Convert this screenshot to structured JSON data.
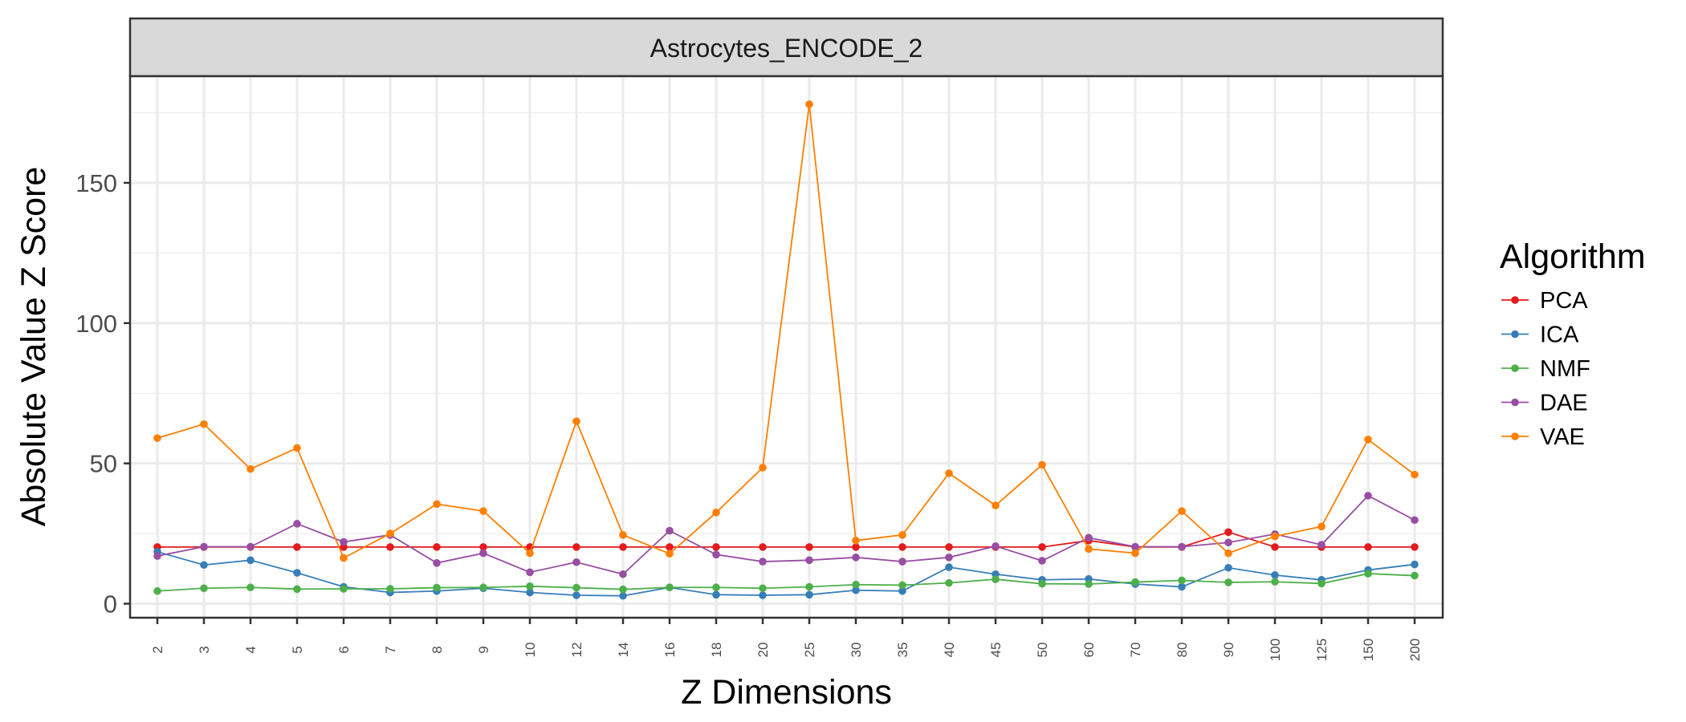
{
  "chart_data": {
    "type": "line",
    "title": "",
    "facet_label": "Astrocytes_ENCODE_2",
    "xlabel": "Z Dimensions",
    "ylabel": "Absolute Value Z Score",
    "categories": [
      "2",
      "3",
      "4",
      "5",
      "6",
      "7",
      "8",
      "9",
      "10",
      "12",
      "14",
      "16",
      "18",
      "20",
      "25",
      "30",
      "35",
      "40",
      "45",
      "50",
      "60",
      "70",
      "80",
      "90",
      "100",
      "125",
      "150",
      "200"
    ],
    "ylim": [
      -5,
      188
    ],
    "yticks": [
      0,
      50,
      100,
      150
    ],
    "grid": true,
    "legend": {
      "title": "Algorithm",
      "position": "right"
    },
    "series": [
      {
        "name": "PCA",
        "color": "#E41A1C",
        "values": [
          20.2,
          20.2,
          20.2,
          20.2,
          20.2,
          20.2,
          20.2,
          20.2,
          20.2,
          20.2,
          20.2,
          20.2,
          20.2,
          20.2,
          20.2,
          20.2,
          20.2,
          20.2,
          20.2,
          20.2,
          22.5,
          20.2,
          20.2,
          25.5,
          20.2,
          20.2,
          20.2,
          20.2
        ]
      },
      {
        "name": "ICA",
        "color": "#377EB8",
        "values": [
          18.5,
          13.8,
          15.5,
          11.0,
          6.0,
          4.0,
          4.5,
          5.5,
          4.0,
          3.0,
          2.8,
          5.8,
          3.2,
          3.0,
          3.2,
          4.8,
          4.5,
          13.0,
          10.5,
          8.5,
          8.8,
          7.0,
          6.0,
          12.8,
          10.2,
          8.5,
          12.0,
          14.0
        ]
      },
      {
        "name": "NMF",
        "color": "#4DAF4A",
        "values": [
          4.5,
          5.5,
          5.8,
          5.2,
          5.3,
          5.3,
          5.7,
          5.8,
          6.2,
          5.7,
          5.1,
          5.8,
          5.8,
          5.5,
          6.0,
          6.8,
          6.6,
          7.4,
          8.7,
          7.1,
          7.0,
          7.7,
          8.3,
          7.6,
          7.8,
          7.2,
          10.7,
          10.0
        ]
      },
      {
        "name": "DAE",
        "color": "#984EA3",
        "values": [
          17.0,
          20.3,
          20.3,
          28.5,
          22.0,
          24.5,
          14.5,
          18.0,
          11.2,
          14.8,
          10.5,
          26.0,
          17.5,
          15.0,
          15.5,
          16.5,
          15.0,
          16.5,
          20.5,
          15.3,
          23.5,
          20.3,
          20.3,
          21.8,
          24.8,
          21.0,
          38.5,
          29.8
        ]
      },
      {
        "name": "VAE",
        "color": "#FF7F00",
        "values": [
          59.0,
          64.0,
          48.0,
          55.5,
          16.3,
          25.0,
          35.5,
          33.0,
          18.0,
          65.0,
          24.5,
          17.8,
          32.5,
          48.5,
          178.0,
          22.5,
          24.5,
          46.5,
          35.0,
          49.5,
          19.5,
          18.0,
          33.0,
          18.0,
          24.0,
          27.5,
          58.5,
          46.0
        ]
      }
    ]
  }
}
